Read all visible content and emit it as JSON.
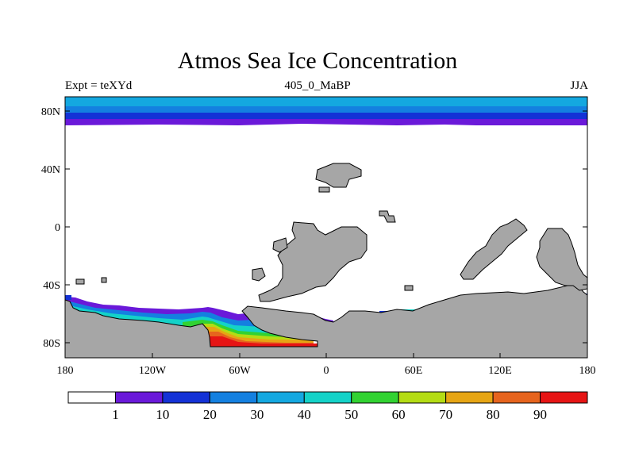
{
  "title": "Atmos Sea Ice Concentration",
  "subtitle_left": "Expt = teXYd",
  "subtitle_center": "405_0_MaBP",
  "subtitle_right": "JJA",
  "x_tick_labels": [
    "180",
    "120W",
    "60W",
    "0",
    "60E",
    "120E",
    "180"
  ],
  "y_tick_labels": [
    "80N",
    "40N",
    "0",
    "40S",
    "80S"
  ],
  "colorbar": {
    "labels": [
      "1",
      "10",
      "20",
      "30",
      "40",
      "50",
      "60",
      "70",
      "80",
      "90"
    ],
    "colors": [
      "#ffffff",
      "#6a19d9",
      "#1432d6",
      "#1480e0",
      "#14a8e0",
      "#14d2c8",
      "#32d232",
      "#b4dc14",
      "#e6a514",
      "#e6641e",
      "#e61414"
    ]
  },
  "land_color": "#a6a6a6"
}
